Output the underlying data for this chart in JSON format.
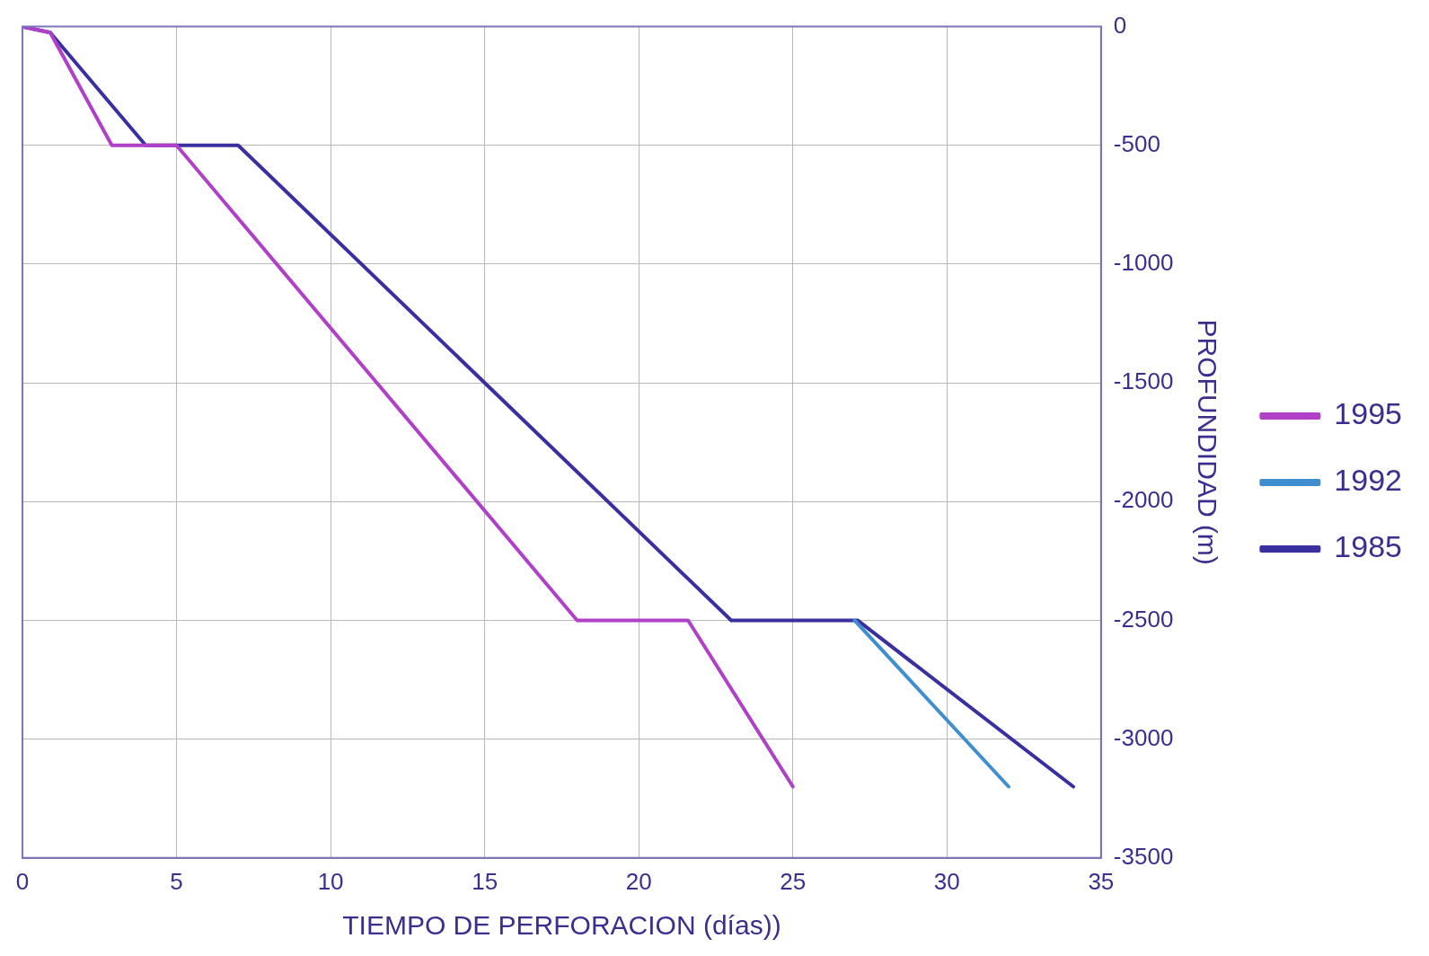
{
  "chart_data": {
    "type": "line",
    "xlabel": "TIEMPO DE PERFORACION (días))",
    "ylabel": "PROFUNDIDAD (m)",
    "xlim": [
      0,
      35
    ],
    "xticks": [
      0,
      5,
      10,
      15,
      20,
      25,
      30,
      35
    ],
    "ylim": [
      -3500,
      0
    ],
    "yticks": [
      -3500,
      -3000,
      -2500,
      -2000,
      -1500,
      -1000,
      -500,
      0
    ],
    "grid": true,
    "legend": "right",
    "marker": "none",
    "line_style": "solid",
    "series": [
      {
        "name": "1995",
        "color": "#b040c8",
        "x": [
          0,
          0.9,
          2.9,
          5,
          18,
          21.6,
          25
        ],
        "values": [
          0,
          -25,
          -500,
          -500,
          -2500,
          -2500,
          -3200
        ]
      },
      {
        "name": "1992",
        "color": "#3f8fd0",
        "x": [
          27,
          32
        ],
        "values": [
          -2500,
          -3200
        ]
      },
      {
        "name": "1985",
        "color": "#3a2fa0",
        "x": [
          0,
          0.9,
          4,
          7,
          23,
          27.1,
          34.1
        ],
        "values": [
          0,
          -25,
          -500,
          -500,
          -2500,
          -2500,
          -3200
        ]
      }
    ]
  }
}
